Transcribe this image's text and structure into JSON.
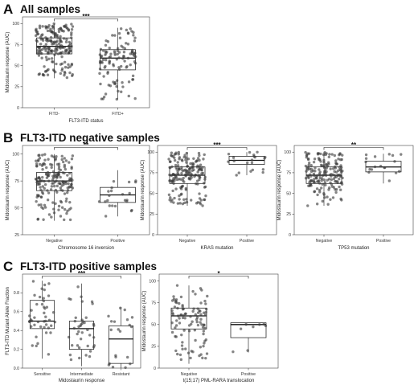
{
  "sections": [
    {
      "letter": "A",
      "title": "All samples"
    },
    {
      "letter": "B",
      "title": "FLT3-ITD negative samples"
    },
    {
      "letter": "C",
      "title": "FLT3-ITD positive samples"
    }
  ],
  "colors": {
    "point": "#3a3a3a",
    "box_stroke": "#111111",
    "axis": "#222222",
    "panel_border": "#444444"
  },
  "chart_data": [
    {
      "type": "box",
      "panel": "A",
      "title": "",
      "xlabel": "FLT3-ITD status",
      "ylabel": "Midostaurin response (AUC)",
      "ylim": [
        0,
        108
      ],
      "yticks": [
        0,
        25,
        50,
        75,
        100
      ],
      "categories": [
        "FITD-",
        "FITD+"
      ],
      "boxes": [
        {
          "category": "FITD-",
          "q1": 64,
          "median": 73,
          "q3": 83,
          "whisker_low": 35,
          "whisker_high": 100,
          "n_points": 200
        },
        {
          "category": "FITD+",
          "q1": 45,
          "median": 59,
          "q3": 69,
          "whisker_low": 10,
          "whisker_high": 95,
          "n_points": 110
        }
      ],
      "significance": {
        "label": "***",
        "from": "FITD-",
        "to": "FITD+"
      }
    },
    {
      "type": "box",
      "panel": "B1",
      "title": "",
      "xlabel": "Chromosome 16 inversion",
      "ylabel": "Midostaurin response (AUC)",
      "ylim": [
        25,
        108
      ],
      "yticks": [
        25,
        50,
        75,
        100
      ],
      "categories": [
        "Negative",
        "Positive"
      ],
      "boxes": [
        {
          "category": "Negative",
          "q1": 66,
          "median": 75,
          "q3": 83,
          "whisker_low": 38,
          "whisker_high": 100,
          "n_points": 180
        },
        {
          "category": "Positive",
          "q1": 55,
          "median": 62,
          "q3": 69,
          "whisker_low": 42,
          "whisker_high": 85,
          "n_points": 22
        }
      ],
      "significance": {
        "label": "**",
        "from": "Negative",
        "to": "Positive"
      }
    },
    {
      "type": "box",
      "panel": "B2",
      "title": "",
      "xlabel": "KRAS mutation",
      "ylabel": "Midostaurin response (AUC)",
      "ylim": [
        0,
        108
      ],
      "yticks": [
        0,
        25,
        50,
        75,
        100
      ],
      "categories": [
        "Negative",
        "Positive"
      ],
      "boxes": [
        {
          "category": "Negative",
          "q1": 62,
          "median": 72,
          "q3": 82,
          "whisker_low": 35,
          "whisker_high": 100,
          "n_points": 180
        },
        {
          "category": "Positive",
          "q1": 85,
          "median": 90,
          "q3": 95,
          "whisker_low": 72,
          "whisker_high": 100,
          "n_points": 20
        }
      ],
      "significance": {
        "label": "***",
        "from": "Negative",
        "to": "Positive"
      }
    },
    {
      "type": "box",
      "panel": "B3",
      "title": "",
      "xlabel": "TP53 mutation",
      "ylabel": "Midostaurin response (AUC)",
      "ylim": [
        0,
        108
      ],
      "yticks": [
        0,
        25,
        50,
        75,
        100
      ],
      "categories": [
        "Negative",
        "Positive"
      ],
      "boxes": [
        {
          "category": "Negative",
          "q1": 62,
          "median": 72,
          "q3": 82,
          "whisker_low": 35,
          "whisker_high": 100,
          "n_points": 180
        },
        {
          "category": "Positive",
          "q1": 76,
          "median": 82,
          "q3": 89,
          "whisker_low": 62,
          "whisker_high": 98,
          "n_points": 18
        }
      ],
      "significance": {
        "label": "**",
        "from": "Negative",
        "to": "Positive"
      }
    },
    {
      "type": "box",
      "panel": "C1",
      "title": "",
      "xlabel": "Midostaurin response",
      "ylabel": "FLT3-ITD Mutant Allele Fraction",
      "ylim": [
        0,
        1.0
      ],
      "yticks": [
        0.0,
        0.2,
        0.4,
        0.6,
        0.8
      ],
      "categories": [
        "Sensitive",
        "Intermediate",
        "Resistant"
      ],
      "boxes": [
        {
          "category": "Sensitive",
          "q1": 0.42,
          "median": 0.5,
          "q3": 0.72,
          "whisker_low": 0.1,
          "whisker_high": 0.93,
          "n_points": 45
        },
        {
          "category": "Intermediate",
          "q1": 0.2,
          "median": 0.42,
          "q3": 0.5,
          "whisker_low": 0.02,
          "whisker_high": 0.9,
          "n_points": 40
        },
        {
          "category": "Resistant",
          "q1": 0.05,
          "median": 0.31,
          "q3": 0.45,
          "whisker_low": 0.0,
          "whisker_high": 0.65,
          "n_points": 20
        }
      ],
      "significance": {
        "label": "***",
        "from": "Sensitive",
        "to": "Resistant"
      }
    },
    {
      "type": "box",
      "panel": "C2",
      "title": "",
      "xlabel": "t(15;17) PML-RARA translocation",
      "ylabel": "Midostaurin response (AUC)",
      "ylim": [
        0,
        108
      ],
      "yticks": [
        0,
        25,
        50,
        75,
        100
      ],
      "categories": [
        "Negative",
        "Positive"
      ],
      "boxes": [
        {
          "category": "Negative",
          "q1": 45,
          "median": 60,
          "q3": 69,
          "whisker_low": 5,
          "whisker_high": 95,
          "n_points": 100
        },
        {
          "category": "Positive",
          "q1": 35,
          "median": 50,
          "q3": 52,
          "whisker_low": 18,
          "whisker_high": 52,
          "n_points": 8
        }
      ],
      "significance": {
        "label": "*",
        "from": "Negative",
        "to": "Positive"
      }
    }
  ]
}
